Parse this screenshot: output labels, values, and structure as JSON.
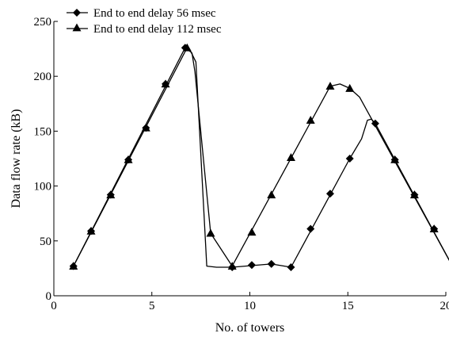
{
  "chart_data": {
    "type": "line",
    "title": "",
    "xlabel": "No. of towers",
    "ylabel": "Data flow rate (kB)",
    "xlim": [
      0,
      20
    ],
    "ylim": [
      0,
      250
    ],
    "x_ticks": [
      0,
      5,
      10,
      15,
      20
    ],
    "y_ticks": [
      0,
      50,
      100,
      150,
      200,
      250
    ],
    "grid": false,
    "legend_position": "top-left",
    "series": [
      {
        "name": "End to end delay 56 msec",
        "marker": "diamond",
        "points": [
          [
            1,
            27
          ],
          [
            1.9,
            59
          ],
          [
            2.9,
            92
          ],
          [
            3.8,
            124
          ],
          [
            4.7,
            153
          ],
          [
            5.7,
            193
          ],
          [
            6.7,
            226
          ],
          [
            9.1,
            26
          ],
          [
            10.1,
            28
          ],
          [
            11.1,
            29
          ],
          [
            12.1,
            26
          ],
          [
            13.1,
            61
          ],
          [
            14.1,
            93
          ],
          [
            15.1,
            125
          ],
          [
            16.4,
            157
          ],
          [
            17.4,
            124
          ],
          [
            18.4,
            92
          ],
          [
            19.4,
            61
          ],
          [
            20.4,
            25
          ]
        ],
        "curve": [
          [
            1,
            27
          ],
          [
            6.7,
            226
          ],
          [
            7.0,
            222
          ],
          [
            7.25,
            213
          ],
          [
            7.8,
            27
          ],
          [
            8.3,
            26
          ],
          [
            9.1,
            26
          ],
          [
            11.1,
            29
          ],
          [
            12.1,
            26
          ],
          [
            15.1,
            125
          ],
          [
            15.7,
            143
          ],
          [
            16.0,
            160
          ],
          [
            16.2,
            161
          ],
          [
            16.4,
            157
          ],
          [
            20.4,
            25
          ]
        ]
      },
      {
        "name": "End to end delay 112 msec",
        "marker": "triangle",
        "points": [
          [
            1,
            27
          ],
          [
            1.9,
            59
          ],
          [
            2.9,
            92
          ],
          [
            3.8,
            124
          ],
          [
            4.7,
            153
          ],
          [
            5.7,
            193
          ],
          [
            6.8,
            226
          ],
          [
            8.0,
            57
          ],
          [
            9.1,
            27
          ],
          [
            10.1,
            58
          ],
          [
            11.1,
            92
          ],
          [
            12.1,
            126
          ],
          [
            13.1,
            160
          ],
          [
            14.1,
            191
          ],
          [
            15.1,
            189
          ],
          [
            17.4,
            124
          ],
          [
            18.4,
            92
          ],
          [
            19.4,
            61
          ],
          [
            20.4,
            25
          ]
        ],
        "curve": [
          [
            1,
            27
          ],
          [
            6.8,
            226
          ],
          [
            7.05,
            221
          ],
          [
            7.2,
            204
          ],
          [
            8.0,
            57
          ],
          [
            9.1,
            27
          ],
          [
            14.1,
            191
          ],
          [
            14.6,
            193
          ],
          [
            15.1,
            189
          ],
          [
            15.6,
            181
          ],
          [
            20.4,
            25
          ]
        ]
      }
    ]
  },
  "colors": {
    "line": "#000000",
    "marker": "#000000",
    "background": "#ffffff"
  }
}
